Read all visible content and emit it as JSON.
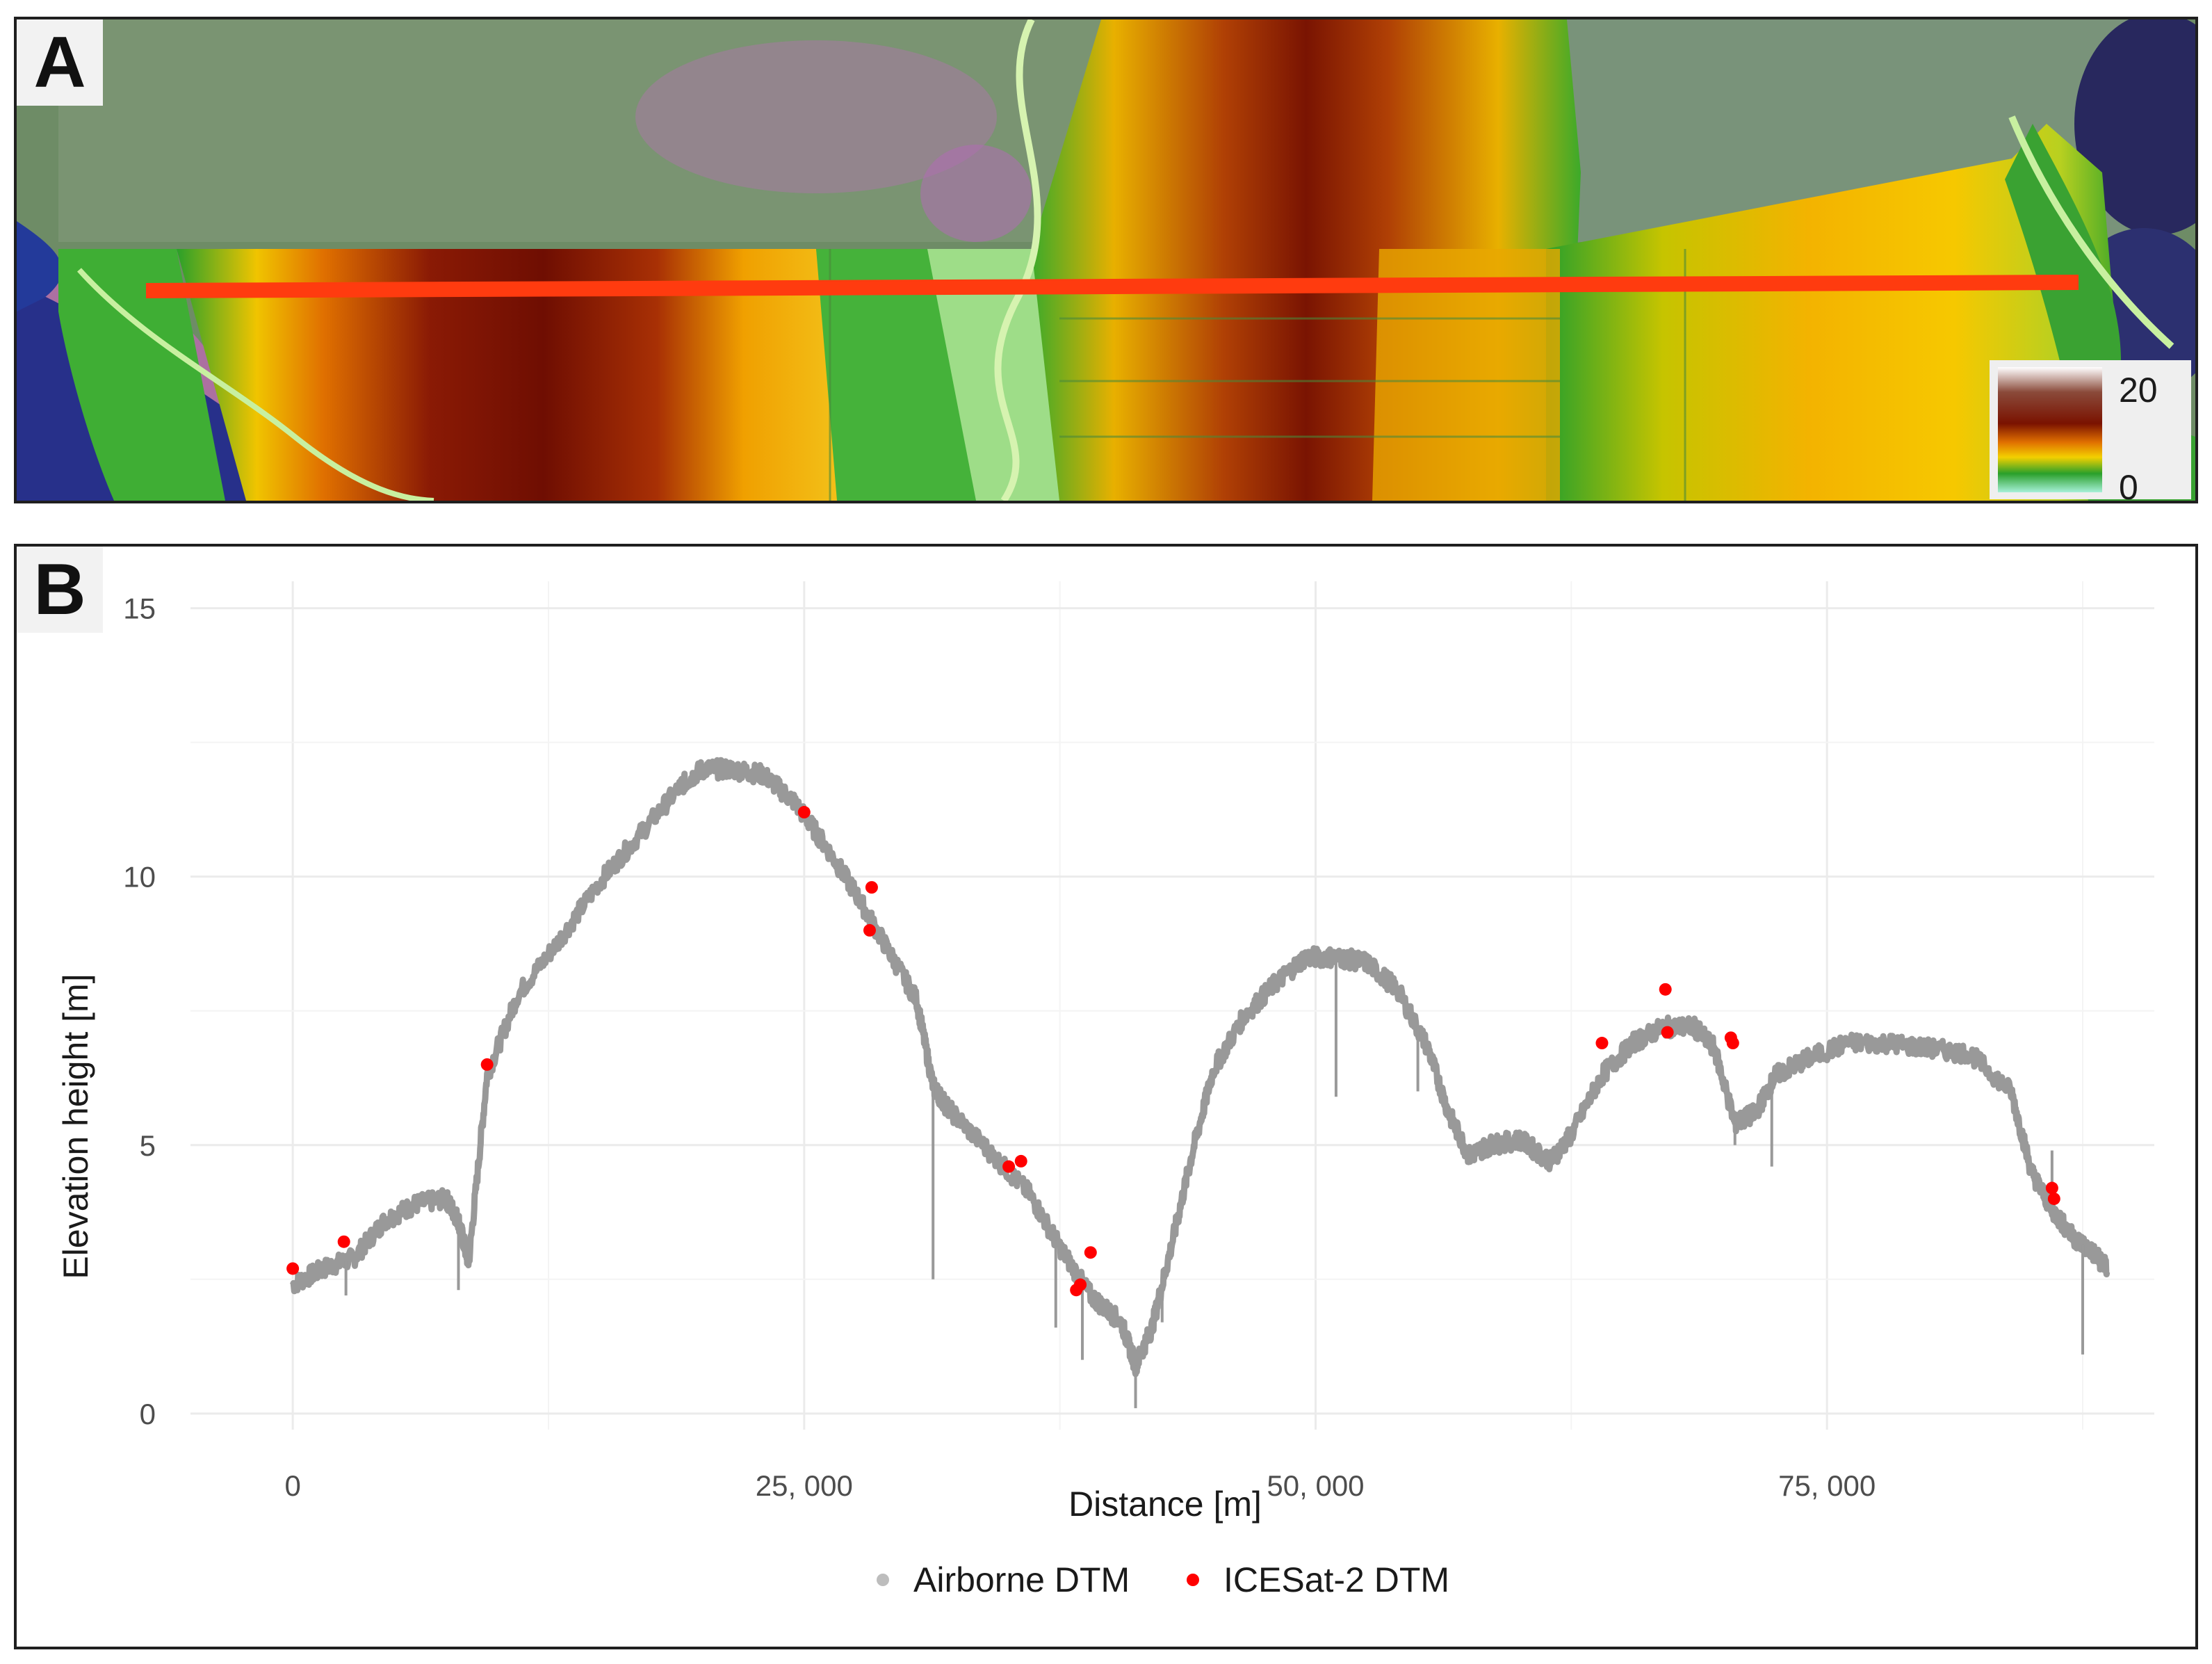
{
  "panel_a": {
    "label": "A",
    "colorbar": {
      "max_label": "20",
      "min_label": "0"
    },
    "transect_color": "#ff3b0f"
  },
  "panel_b": {
    "label": "B"
  },
  "chart_data": {
    "type": "scatter",
    "title": "",
    "xlabel": "Distance [m]",
    "ylabel": "Elevation height [m]",
    "xlim": [
      -5000,
      91000
    ],
    "ylim": [
      -0.3,
      15.5
    ],
    "xticks": [
      0,
      25000,
      50000,
      75000
    ],
    "xtick_labels": [
      "0",
      "25, 000",
      "50, 000",
      "75, 000"
    ],
    "yticks": [
      0,
      5,
      10,
      15
    ],
    "ytick_labels": [
      "0",
      "5",
      "10",
      "15"
    ],
    "grid": true,
    "legend": {
      "position": "bottom",
      "entries": [
        "Airborne DTM",
        "ICESat-2 DTM"
      ]
    },
    "series": [
      {
        "name": "Airborne DTM",
        "color": "#999999",
        "style": "dense-points",
        "x": [
          0,
          1500,
          3000,
          4500,
          6000,
          7500,
          8100,
          8600,
          9500,
          11000,
          13000,
          15000,
          17000,
          19000,
          20000,
          21500,
          23000,
          24500,
          26000,
          27500,
          29000,
          30500,
          31300,
          32000,
          34000,
          36000,
          37500,
          39000,
          40500,
          41200,
          42000,
          43000,
          44000,
          45000,
          46500,
          48000,
          49500,
          51000,
          52500,
          54000,
          55500,
          56500,
          57500,
          58500,
          60000,
          61500,
          62500,
          64000,
          65500,
          67000,
          68500,
          69500,
          70500,
          71500,
          72500,
          74000,
          76000,
          78000,
          80000,
          82000,
          84000,
          85000,
          86000,
          87000,
          88000,
          88700
        ],
        "y": [
          2.4,
          2.7,
          2.9,
          3.6,
          3.9,
          4.0,
          3.6,
          2.8,
          6.3,
          7.8,
          8.8,
          9.9,
          10.8,
          11.7,
          12.0,
          12.0,
          11.9,
          11.4,
          10.6,
          9.7,
          8.7,
          7.7,
          6.1,
          5.7,
          4.9,
          4.1,
          3.1,
          2.2,
          1.7,
          0.9,
          1.6,
          3.2,
          4.9,
          6.4,
          7.4,
          8.0,
          8.5,
          8.5,
          8.4,
          7.9,
          6.8,
          5.6,
          4.8,
          5.0,
          5.1,
          4.7,
          5.2,
          6.3,
          6.9,
          7.2,
          7.2,
          6.8,
          5.4,
          5.6,
          6.3,
          6.6,
          6.9,
          6.9,
          6.8,
          6.7,
          6.0,
          4.5,
          3.8,
          3.3,
          3.0,
          2.7
        ]
      },
      {
        "name": "ICESat-2 DTM",
        "color": "#ff0000",
        "style": "points",
        "x": [
          0,
          2500,
          9500,
          25000,
          28300,
          28200,
          35000,
          35600,
          38500,
          38300,
          39000,
          64000,
          67100,
          67200,
          70300,
          70400,
          86000,
          86100
        ],
        "y": [
          2.7,
          3.2,
          6.5,
          11.2,
          9.8,
          9.0,
          4.6,
          4.7,
          2.4,
          2.3,
          3.0,
          6.9,
          7.9,
          7.1,
          7.0,
          6.9,
          4.2,
          4.0
        ]
      }
    ]
  }
}
